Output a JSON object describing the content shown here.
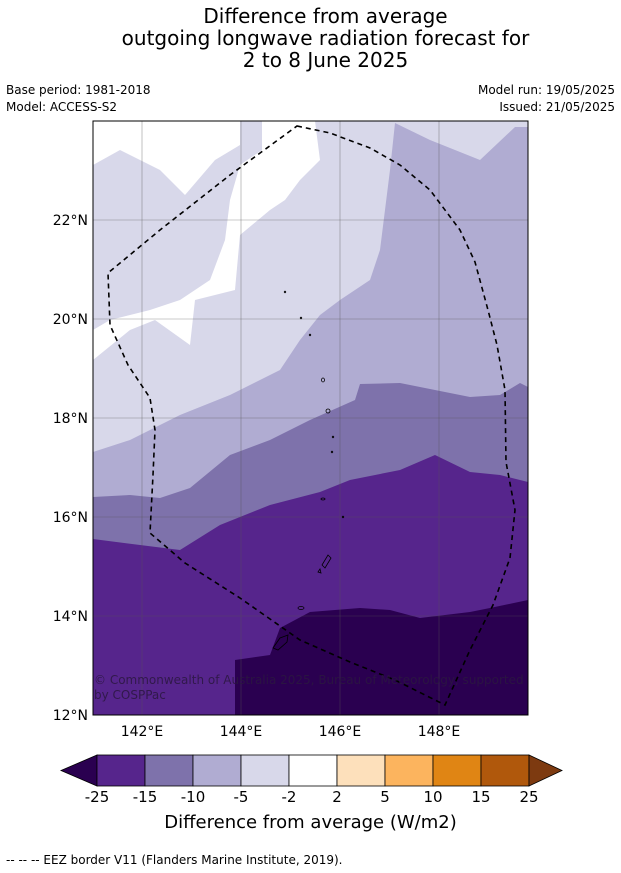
{
  "title_lines": [
    "Difference from average",
    "outgoing longwave radiation forecast for",
    "2 to 8 June 2025"
  ],
  "base_period": "Base period: 1981-2018",
  "model": "Model: ACCESS-S2",
  "model_run": "Model run: 19/05/2025",
  "issued": "Issued: 21/05/2025",
  "map": {
    "latitude_labels": [
      "22°N",
      "20°N",
      "18°N",
      "16°N",
      "14°N",
      "12°N"
    ],
    "longitude_labels": [
      "142°E",
      "144°E",
      "146°E",
      "148°E"
    ],
    "copyright": "© Commonwealth of Australia 2025, Bureau of Meteorology, supported by COSPPac",
    "eez_style": "dashed black line"
  },
  "colorbar": {
    "title": "Difference from average (W/m2)",
    "tick_labels": [
      "-25",
      "-15",
      "-10",
      "-5",
      "-2",
      "2",
      "5",
      "10",
      "15",
      "25"
    ],
    "colors": [
      "#2a0050",
      "#56258c",
      "#7e72ab",
      "#b0acd2",
      "#d8d8ea",
      "#ffffff",
      "#fde0bb",
      "#fcb45e",
      "#e08514",
      "#b0580c",
      "#7d3a10"
    ]
  },
  "footer": "--  --  -- EEZ border V11 (Flanders Marine Institute, 2019)."
}
